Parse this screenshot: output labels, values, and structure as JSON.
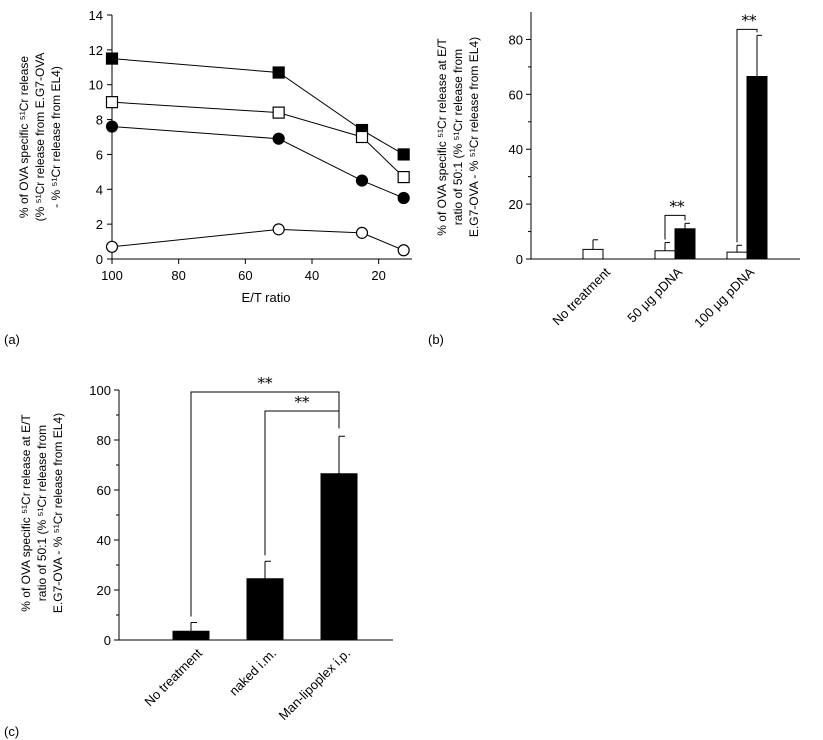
{
  "chart_data": [
    {
      "panel": "(a)",
      "type": "line",
      "xlabel": "E/T ratio",
      "ylabel_lines": [
        "% of OVA specific ⁵¹Cr release",
        "(% ⁵¹Cr release from E.G7-OVA",
        "- % ⁵¹Cr release from EL4)"
      ],
      "x": [
        100,
        50,
        25,
        12.5
      ],
      "xlim": [
        100,
        10
      ],
      "ylim": [
        0,
        14
      ],
      "xticks": [
        100,
        80,
        60,
        40,
        20
      ],
      "yticks": [
        0,
        2,
        4,
        6,
        8,
        10,
        12,
        14
      ],
      "series": [
        {
          "marker": "filled-square",
          "values": [
            11.5,
            10.7,
            7.4,
            6.0
          ]
        },
        {
          "marker": "open-square",
          "values": [
            9.0,
            8.4,
            7.0,
            4.7
          ]
        },
        {
          "marker": "filled-circle",
          "values": [
            7.6,
            6.9,
            4.5,
            3.5
          ]
        },
        {
          "marker": "open-circle",
          "values": [
            0.7,
            1.7,
            1.5,
            0.5
          ]
        }
      ],
      "grid": false
    },
    {
      "panel": "(b)",
      "type": "bar",
      "ylabel_lines": [
        "% of OVA specific ⁵¹Cr release at E/T",
        "ratio of 50:1 (% ⁵¹Cr release from",
        "E.G7-OVA - % ⁵¹Cr release from EL4)"
      ],
      "categories": [
        "No treatment",
        "50 μg pDNA",
        "100 μg pDNA"
      ],
      "ylim": [
        0,
        90
      ],
      "yticks": [
        0,
        20,
        40,
        60,
        80
      ],
      "series": [
        {
          "fill": "white",
          "values": [
            3.5,
            3.0,
            2.5
          ],
          "errors": [
            3.5,
            3.0,
            2.5
          ]
        },
        {
          "fill": "black",
          "values": [
            null,
            11.0,
            66.5
          ],
          "errors": [
            null,
            2.0,
            15.0
          ]
        }
      ],
      "significance": [
        {
          "groups": [
            "50 μg pDNA",
            "50 μg pDNA"
          ],
          "label": "**"
        },
        {
          "groups": [
            "100 μg pDNA",
            "100 μg pDNA"
          ],
          "label": "**"
        }
      ]
    },
    {
      "panel": "(c)",
      "type": "bar",
      "ylabel_lines": [
        "% of OVA specific ⁵¹Cr release at E/T",
        "ratio of 50:1 (% ⁵¹Cr release from",
        "E.G7-OVA - % ⁵¹Cr release from EL4)"
      ],
      "categories": [
        "No treatment",
        "naked i.m.",
        "Man-lipoplex i.p."
      ],
      "ylim": [
        0,
        100
      ],
      "yticks": [
        0,
        20,
        40,
        60,
        80,
        100
      ],
      "values": [
        3.5,
        24.5,
        66.5
      ],
      "errors": [
        3.5,
        7.0,
        15.0
      ],
      "significance": [
        {
          "groups": [
            "No treatment",
            "Man-lipoplex i.p."
          ],
          "label": "**"
        },
        {
          "groups": [
            "naked i.m.",
            "Man-lipoplex i.p."
          ],
          "label": "**"
        }
      ]
    }
  ]
}
